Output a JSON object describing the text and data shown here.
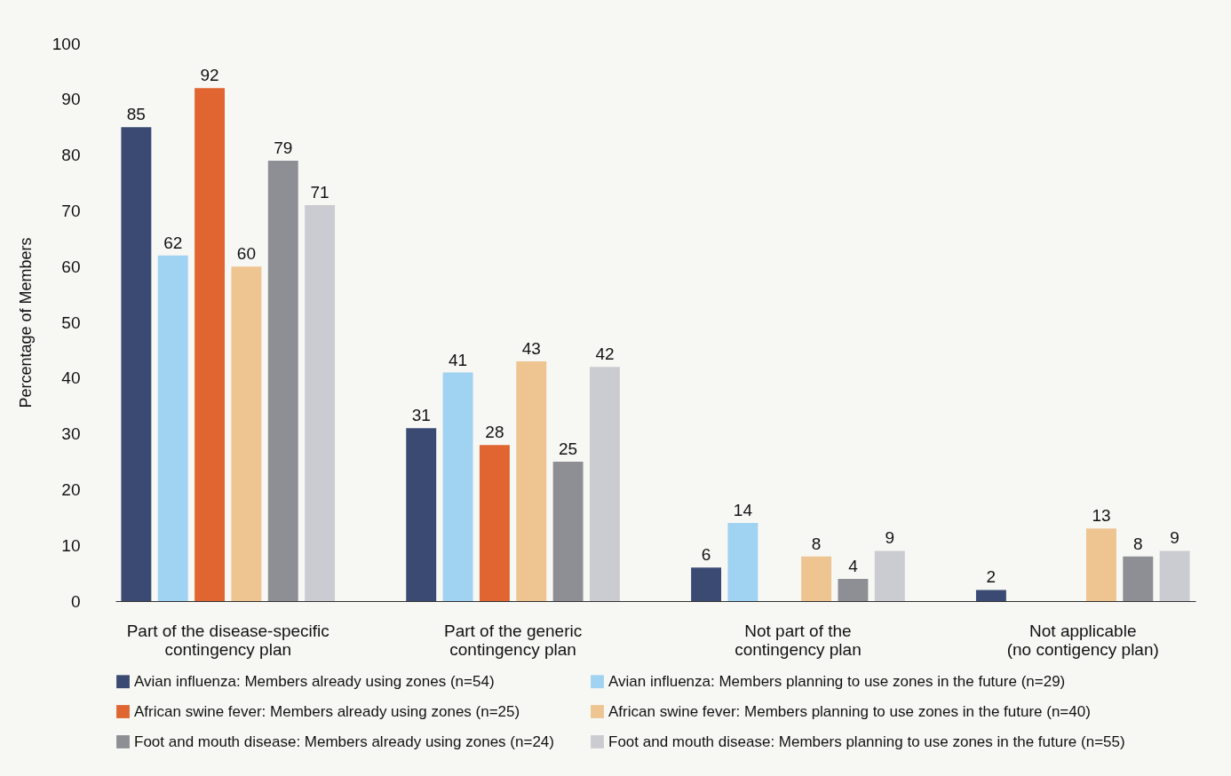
{
  "chart_data": {
    "type": "bar",
    "ylabel": "Percentage of Members",
    "categories": [
      "Part of the disease-specific contingency plan",
      "Part of the generic contingency plan",
      "Not part of the contingency plan",
      "Not applicable (no contigency plan)"
    ],
    "series": [
      {
        "name": "Avian influenza: Members already using zones (n=54)",
        "color": "#3a4a72",
        "values": [
          85,
          31,
          6,
          2
        ]
      },
      {
        "name": "Avian influenza: Members planning to use zones in the future (n=29)",
        "color": "#a0d2f2",
        "values": [
          62,
          41,
          14,
          null
        ]
      },
      {
        "name": "African swine fever: Members already using zones (n=25)",
        "color": "#e06530",
        "values": [
          92,
          28,
          null,
          null
        ]
      },
      {
        "name": "African swine fever: Members planning to use zones in the future (n=40)",
        "color": "#eec491",
        "values": [
          60,
          43,
          8,
          13
        ]
      },
      {
        "name": "Foot and mouth disease: Members already using zones (n=24)",
        "color": "#8e8f94",
        "values": [
          79,
          25,
          4,
          8
        ]
      },
      {
        "name": "Foot and mouth disease: Members planning to use zones in the future (n=55)",
        "color": "#cbcbd2",
        "values": [
          71,
          42,
          9,
          9
        ]
      }
    ],
    "ylim": [
      0,
      100
    ],
    "yticks": [
      0,
      10,
      20,
      30,
      40,
      50,
      60,
      70,
      80,
      90,
      100
    ],
    "grid": false,
    "data_labels": true,
    "legend": "bottom"
  }
}
